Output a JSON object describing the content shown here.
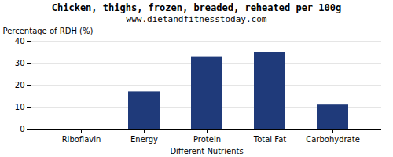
{
  "chart_data": {
    "type": "bar",
    "title": "Chicken, thighs, frozen, breaded, reheated per 100g",
    "subtitle": "www.dietandfitnesstoday.com",
    "xlabel": "Different Nutrients",
    "ylabel": "Percentage of RDH (%)",
    "categories": [
      "Riboflavin",
      "Energy",
      "Protein",
      "Total Fat",
      "Carbohydrate"
    ],
    "values": [
      0,
      17,
      33,
      35,
      11
    ],
    "color": "#1F3A7A",
    "ylim": [
      0,
      40
    ],
    "yticks": [
      0,
      10,
      20,
      30,
      40
    ],
    "grid": true
  }
}
